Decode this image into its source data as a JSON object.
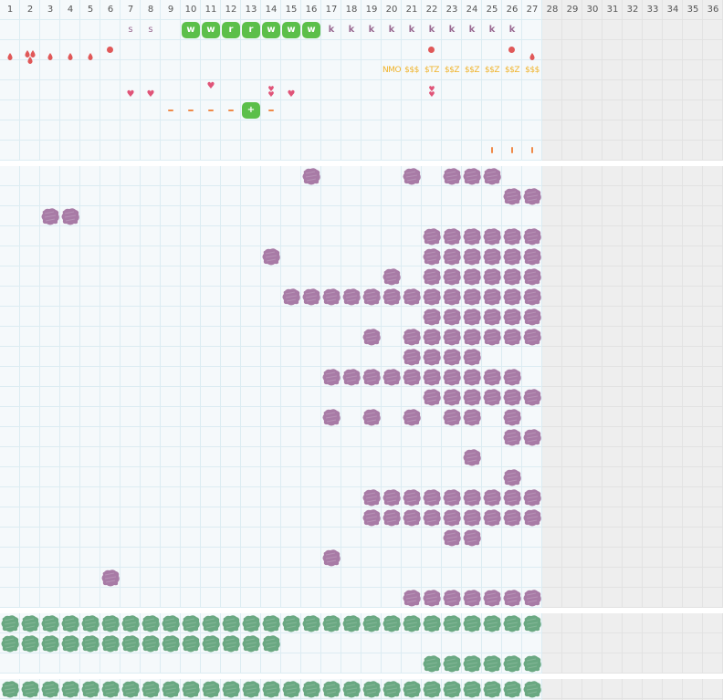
{
  "colors": {
    "purple_blob": "#a87ba6",
    "green_blob": "#6aa882",
    "bright_green": "#5cbf4a",
    "red": "#e05858",
    "orange": "#f08a48",
    "gold": "#f0b32a",
    "letter_purple": "#9a6a92",
    "pink": "#e05478"
  },
  "columns": [
    "1",
    "2",
    "3",
    "4",
    "5",
    "6",
    "7",
    "8",
    "9",
    "10",
    "11",
    "12",
    "13",
    "14",
    "15",
    "16",
    "17",
    "18",
    "19",
    "20",
    "21",
    "22",
    "23",
    "24",
    "25",
    "26",
    "27",
    "28",
    "29",
    "30",
    "31",
    "32",
    "33",
    "34",
    "35",
    "36"
  ],
  "active_columns": 27,
  "header_rows": {
    "row_s": {
      "label": "s",
      "cols": [
        7,
        8
      ]
    },
    "row_w": {
      "cells": [
        {
          "col": 10,
          "text": "w"
        },
        {
          "col": 11,
          "text": "w"
        },
        {
          "col": 12,
          "text": "r"
        },
        {
          "col": 13,
          "text": "r"
        },
        {
          "col": 14,
          "text": "w"
        },
        {
          "col": 15,
          "text": "w"
        },
        {
          "col": 16,
          "text": "w"
        }
      ]
    },
    "row_k": {
      "label": "k",
      "cols": [
        17,
        18,
        19,
        20,
        21,
        22,
        23,
        24,
        25,
        26
      ]
    },
    "drops": {
      "cols": [
        1,
        3,
        4,
        5,
        27
      ],
      "double_cols": [
        2
      ],
      "circle_cols": [
        6,
        22,
        26
      ]
    },
    "money": [
      {
        "col": 20,
        "text": "NMO"
      },
      {
        "col": 21,
        "text": "$$$"
      },
      {
        "col": 22,
        "text": "$TZ"
      },
      {
        "col": 23,
        "text": "$$Z"
      },
      {
        "col": 24,
        "text": "$$Z"
      },
      {
        "col": 25,
        "text": "$$Z"
      },
      {
        "col": 26,
        "text": "$$Z"
      },
      {
        "col": 27,
        "text": "$$$"
      }
    ],
    "hearts": {
      "row4_cols": [
        11
      ],
      "row4_double_cols": [
        14,
        22
      ],
      "row5_cols": [
        7,
        8,
        15
      ]
    },
    "dashes": {
      "cols": [
        9,
        10,
        11,
        12,
        14
      ],
      "plus_col": 13,
      "plus_text": "+"
    },
    "ticks": {
      "cols": [
        25,
        26,
        27
      ]
    }
  },
  "main_grid_rows": [
    [
      16,
      21,
      23,
      24,
      25
    ],
    [
      26,
      27
    ],
    [
      3,
      4
    ],
    [
      22,
      23,
      24,
      25,
      26,
      27
    ],
    [
      14,
      22,
      23,
      24,
      25,
      26,
      27
    ],
    [
      20,
      22,
      23,
      24,
      25,
      26,
      27
    ],
    [
      15,
      16,
      17,
      18,
      19,
      20,
      21,
      22,
      23,
      24,
      25,
      26,
      27
    ],
    [
      22,
      23,
      24,
      25,
      26,
      27
    ],
    [
      19,
      21,
      22,
      23,
      24,
      25,
      26,
      27
    ],
    [
      21,
      22,
      23,
      24
    ],
    [
      17,
      18,
      19,
      20,
      21,
      22,
      23,
      24,
      25,
      26
    ],
    [
      22,
      23,
      24,
      25,
      26,
      27
    ],
    [
      17,
      19,
      21,
      23,
      24,
      26
    ],
    [
      26,
      27
    ],
    [
      24
    ],
    [
      26
    ],
    [
      19,
      20,
      21,
      22,
      23,
      24,
      25,
      26,
      27
    ],
    [
      19,
      20,
      21,
      22,
      23,
      24,
      25,
      26,
      27
    ],
    [
      23,
      24
    ],
    [
      17
    ],
    [
      6
    ],
    [
      21,
      22,
      23,
      24,
      25,
      26,
      27
    ]
  ],
  "green_rows": [
    [
      1,
      2,
      3,
      4,
      5,
      6,
      7,
      8,
      9,
      10,
      11,
      12,
      13,
      14,
      15,
      16,
      17,
      18,
      19,
      20,
      21,
      22,
      23,
      24,
      25,
      26,
      27
    ],
    [
      1,
      2,
      3,
      4,
      5,
      6,
      7,
      8,
      9,
      10,
      11,
      12,
      13,
      14
    ],
    [
      22,
      23,
      24,
      25,
      26,
      27
    ]
  ],
  "bottom_row": [
    1,
    2,
    3,
    4,
    5,
    6,
    7,
    8,
    9,
    10,
    11,
    12,
    13,
    14,
    15,
    16,
    17,
    18,
    19,
    20,
    21,
    22,
    23,
    24,
    25,
    26,
    27
  ]
}
